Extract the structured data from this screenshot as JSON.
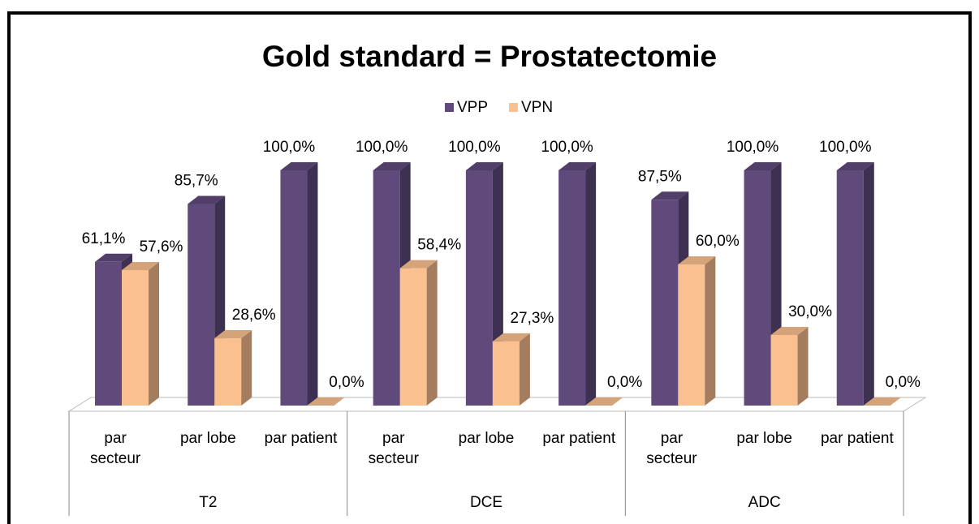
{
  "chart_data": {
    "type": "bar3d",
    "title": "Gold standard = Prostatectomie",
    "categories": [
      "par secteur",
      "par lobe",
      "par patient",
      "par secteur",
      "par lobe",
      "par patient",
      "par secteur",
      "par lobe",
      "par patient"
    ],
    "groups": [
      "T2",
      "DCE",
      "ADC"
    ],
    "series": [
      {
        "name": "VPP",
        "color": "#5f4a7b",
        "values": [
          61.1,
          85.7,
          100,
          100,
          100,
          100,
          87.5,
          100,
          100
        ],
        "value_labels": [
          "61,1%",
          "85,7%",
          "100,0%",
          "100,0%",
          "100,0%",
          "100,0%",
          "87,5%",
          "100,0%",
          "100,0%"
        ]
      },
      {
        "name": "VPN",
        "color": "#fac090",
        "values": [
          57.6,
          28.6,
          0,
          58.4,
          27.3,
          0,
          60,
          30,
          0
        ],
        "value_labels": [
          "57,6%",
          "28,6%",
          "0,0%",
          "58,4%",
          "27,3%",
          "0,0%",
          "60,0%",
          "30,0%",
          "0,0%"
        ]
      }
    ],
    "legend": "top"
  }
}
